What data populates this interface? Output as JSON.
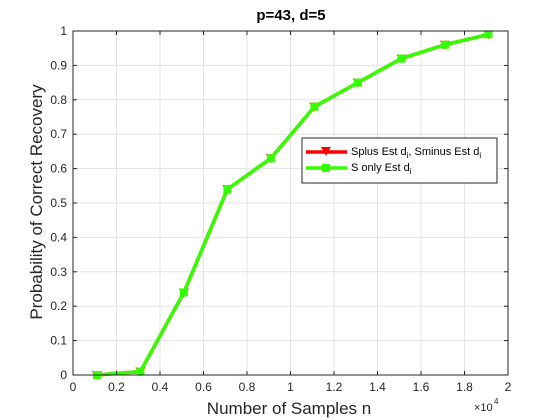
{
  "chart_data": {
    "type": "line",
    "title": "p=43,  d=5",
    "xlabel": "Number of Samples n",
    "ylabel": "Probability of Correct Recovery",
    "x_multiplier_label": "×10",
    "x_multiplier_exponent": "4",
    "xlim": [
      0,
      2
    ],
    "ylim": [
      0,
      1
    ],
    "xticks": [
      "0",
      "0.2",
      "0.4",
      "0.6",
      "0.8",
      "1",
      "1.2",
      "1.4",
      "1.6",
      "1.8",
      "2"
    ],
    "yticks": [
      "0",
      "0.1",
      "0.2",
      "0.3",
      "0.4",
      "0.5",
      "0.6",
      "0.7",
      "0.8",
      "0.9",
      "1"
    ],
    "grid": true,
    "legend_position": "right-middle",
    "x": [
      0.11,
      0.31,
      0.51,
      0.71,
      0.91,
      1.11,
      1.31,
      1.51,
      1.71,
      1.91
    ],
    "series": [
      {
        "name": "Splus Est d",
        "name_sub": "i",
        "name_tail": ", Sminus Est d",
        "name_tail_sub": "i",
        "color": "#ff0000",
        "marker": "triangle-down",
        "values": [
          0.0,
          0.01,
          0.24,
          0.54,
          0.63,
          0.78,
          0.85,
          0.92,
          0.96,
          0.99
        ]
      },
      {
        "name": "S only Est d",
        "name_sub": "i",
        "color": "#33ff00",
        "marker": "square",
        "values": [
          0.0,
          0.01,
          0.24,
          0.54,
          0.63,
          0.78,
          0.85,
          0.92,
          0.96,
          0.99
        ]
      }
    ]
  }
}
